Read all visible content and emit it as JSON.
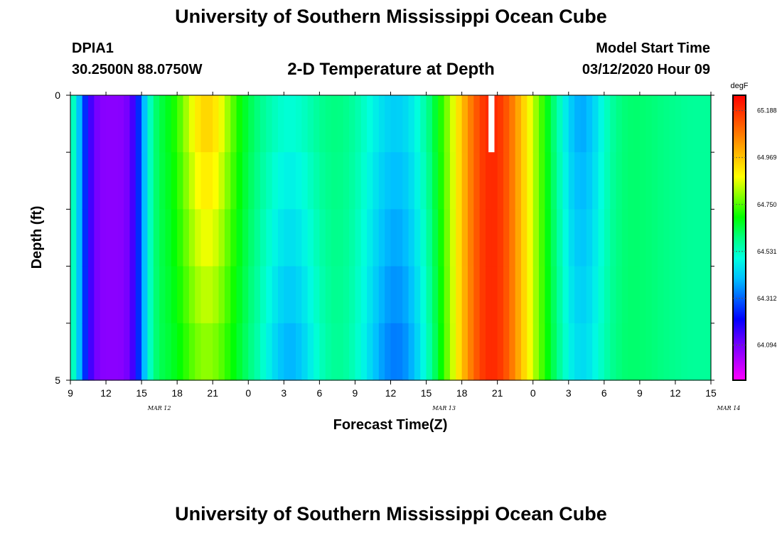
{
  "page": {
    "title_top": "University of Southern Mississippi Ocean Cube",
    "title_bottom": "University of Southern Mississippi Ocean Cube",
    "station": "DPIA1",
    "coords": "30.2500N 88.0750W",
    "subtitle": "2-D Temperature at Depth",
    "model_start_label": "Model Start Time",
    "model_start_value": "03/12/2020 Hour 09"
  },
  "chart_data": {
    "type": "heatmap",
    "title": "2-D Temperature at Depth",
    "xlabel": "Forecast Time(Z)",
    "ylabel": "Depth (ft)",
    "x_tick_labels": [
      "9",
      "12",
      "15",
      "18",
      "21",
      "0",
      "3",
      "6",
      "9",
      "12",
      "15",
      "18",
      "21",
      "0",
      "3",
      "6",
      "9",
      "12",
      "15"
    ],
    "date_labels": [
      {
        "text": "MAR 12",
        "at_hour": 16.5
      },
      {
        "text": "MAR 13",
        "at_hour": 40.5
      },
      {
        "text": "MAR 14",
        "at_hour": 64.5
      }
    ],
    "x_range_hours": [
      9,
      63
    ],
    "y_tick_labels": [
      "0",
      "5"
    ],
    "y_range": [
      0,
      5
    ],
    "depth_rows": 5,
    "colorbar": {
      "unit": "degF",
      "min": 63.93,
      "max": 65.26,
      "tick_values": [
        64.094,
        64.312,
        64.531,
        64.75,
        64.969,
        65.188
      ],
      "tick_labels": [
        "64.094",
        "64.312",
        "64.531",
        "64.750",
        "64.969",
        "65.188"
      ],
      "colors": [
        "#ff00ff",
        "#b000ff",
        "#6000ff",
        "#0000ff",
        "#0060ff",
        "#00c0ff",
        "#00ffe0",
        "#00ff80",
        "#00ff00",
        "#80ff00",
        "#ffff00",
        "#ffc000",
        "#ff8000",
        "#ff4000",
        "#ff0000"
      ]
    },
    "missing_cell": {
      "hour": 44.5,
      "row": 0
    },
    "grid": false
  }
}
